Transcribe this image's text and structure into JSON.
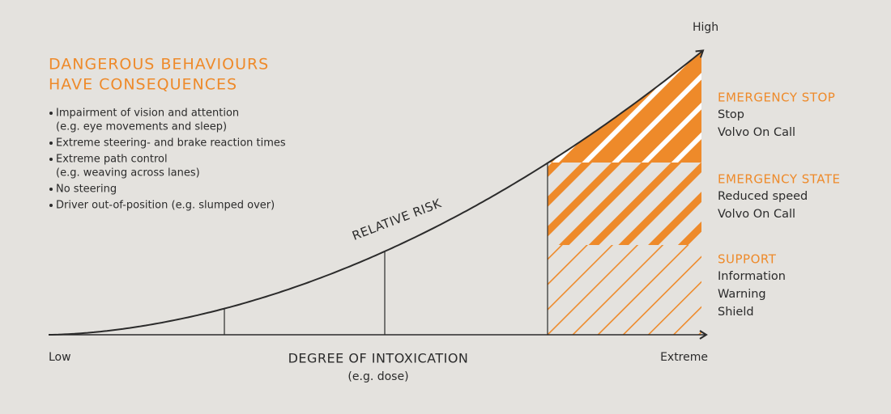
{
  "heading": {
    "lines": [
      "DANGEROUS BEHAVIOURS",
      "HAVE CONSEQUENCES"
    ]
  },
  "bullets": [
    {
      "lines": [
        "Impairment of vision and attention",
        "(e.g. eye movements and sleep)"
      ]
    },
    {
      "lines": [
        "Extreme steering- and brake reaction times"
      ]
    },
    {
      "lines": [
        "Extreme path control",
        "(e.g. weaving across lanes)"
      ]
    },
    {
      "lines": [
        "No steering"
      ]
    },
    {
      "lines": [
        "Driver out-of-position (e.g. slumped over)"
      ]
    }
  ],
  "axis": {
    "y_label": "High",
    "x_start": "Low",
    "x_end": "Extreme",
    "x_title": "DEGREE OF INTOXICATION",
    "x_subtitle": "(e.g. dose)"
  },
  "curve_label": "RELATIVE RISK",
  "zones": [
    {
      "title": "EMERGENCY STOP",
      "items": [
        "Stop",
        "Volvo On Call"
      ]
    },
    {
      "title": "EMERGENCY STATE",
      "items": [
        "Reduced speed",
        "Volvo On Call"
      ]
    },
    {
      "title": "SUPPORT",
      "items": [
        "Information",
        "Warning",
        "Shield"
      ]
    }
  ]
}
